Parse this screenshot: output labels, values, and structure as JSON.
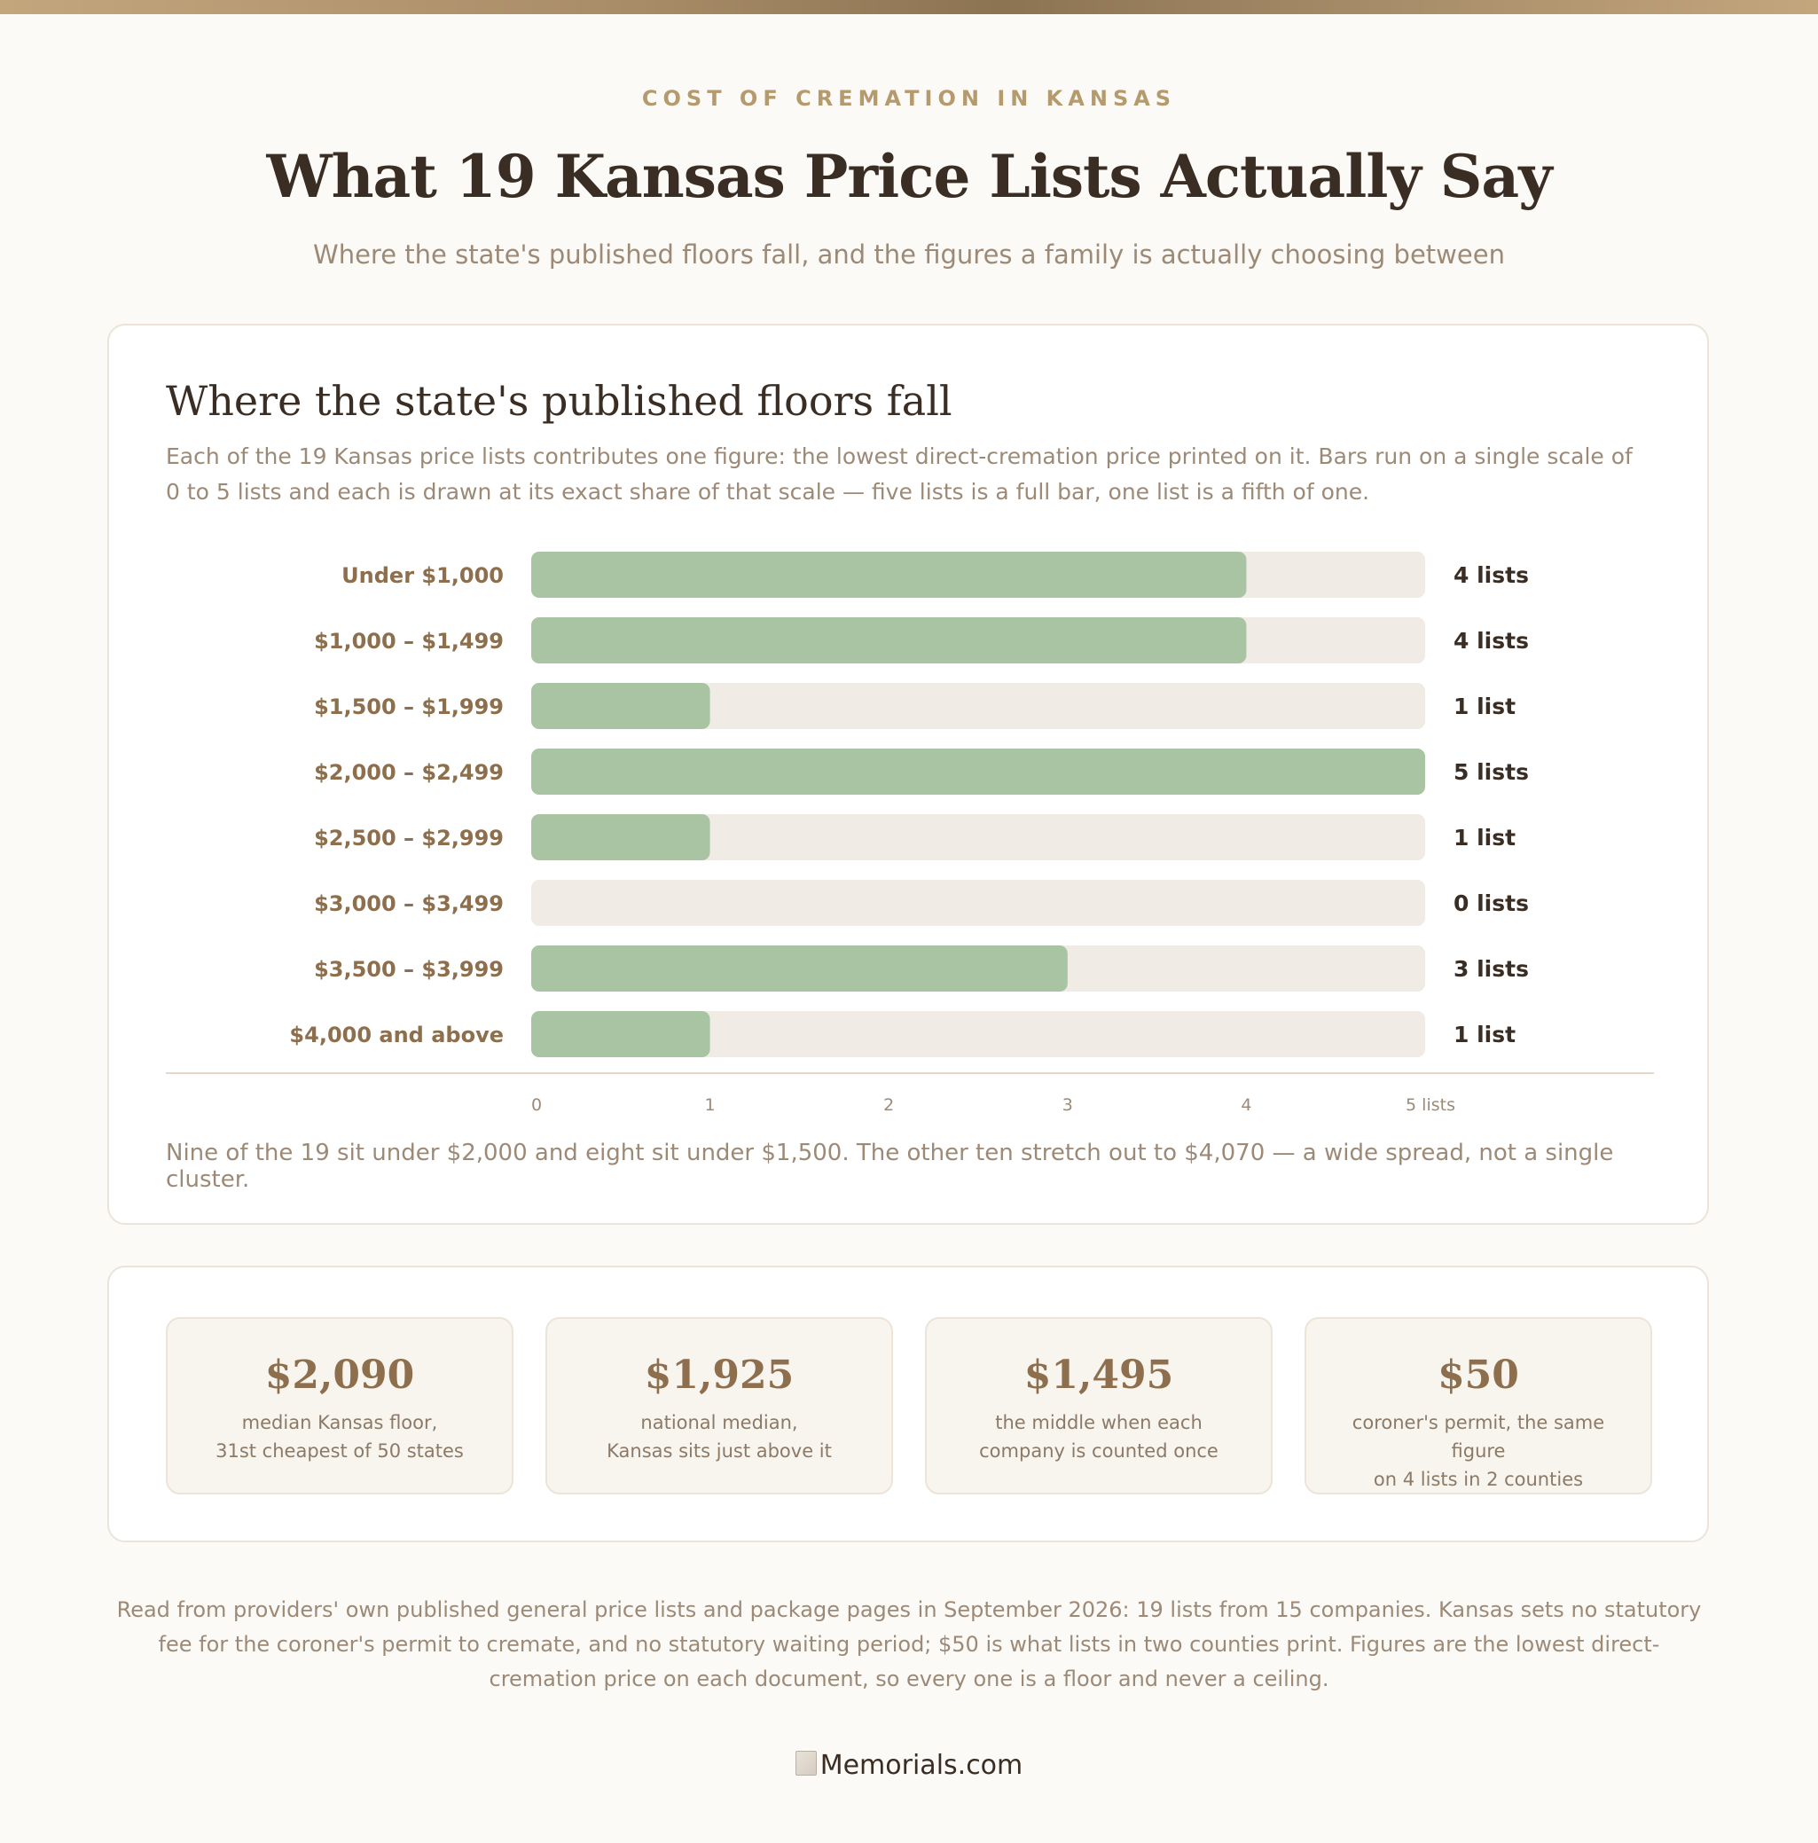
{
  "header": {
    "kicker": "COST OF CREMATION IN KANSAS",
    "title": "What 19 Kansas Price Lists Actually Say",
    "subtitle": "Where the state's published floors fall, and the figures a family is actually choosing between"
  },
  "chart_card": {
    "title": "Where the state's published floors fall",
    "description": "Each of the 19 Kansas price lists contributes one figure: the lowest direct-cremation price printed on it. Bars run on a single scale of 0 to 5 lists and each is drawn at its exact share of that scale — five lists is a full bar, one list is a fifth of one.",
    "note": "Nine of the 19 sit under $2,000 and eight sit under $1,500. The other ten stretch out to $4,070 — a wide spread, not a single cluster."
  },
  "chart_data": {
    "type": "bar",
    "orientation": "horizontal",
    "categories": [
      "Under $1,000",
      "$1,000 – $1,499",
      "$1,500 – $1,999",
      "$2,000 – $2,499",
      "$2,500 – $2,999",
      "$3,000 – $3,499",
      "$3,500 – $3,999",
      "$4,000 and above"
    ],
    "values": [
      4,
      4,
      1,
      5,
      1,
      0,
      3,
      1
    ],
    "value_labels": [
      "4 lists",
      "4 lists",
      "1 list",
      "5 lists",
      "1 list",
      "0 lists",
      "3 lists",
      "1 list"
    ],
    "xlim": [
      0,
      5
    ],
    "x_ticks": [
      "0",
      "1",
      "2",
      "3",
      "4",
      "5 lists"
    ],
    "grid": false,
    "bar_color": "#a8c4a2",
    "track_color": "#f0ebe4"
  },
  "stats": [
    {
      "value": "$2,090",
      "label_line1": "median Kansas floor,",
      "label_line2": "31st cheapest of 50 states"
    },
    {
      "value": "$1,925",
      "label_line1": "national median,",
      "label_line2": "Kansas sits just above it"
    },
    {
      "value": "$1,495",
      "label_line1": "the middle when each",
      "label_line2": "company is counted once"
    },
    {
      "value": "$50",
      "label_line1": "coroner's permit, the same figure",
      "label_line2": "on 4 lists in 2 counties"
    }
  ],
  "footnote": "Read from providers' own published general price lists and package pages in September 2026: 19 lists from 15 companies. Kansas sets no statutory fee for the coroner's permit to cremate, and no statutory waiting period; $50 is what lists in two counties print. Figures are the lowest direct-cremation price on each document, so every one is a floor and never a ceiling.",
  "logo": {
    "alt_text": "Memorials.com"
  }
}
